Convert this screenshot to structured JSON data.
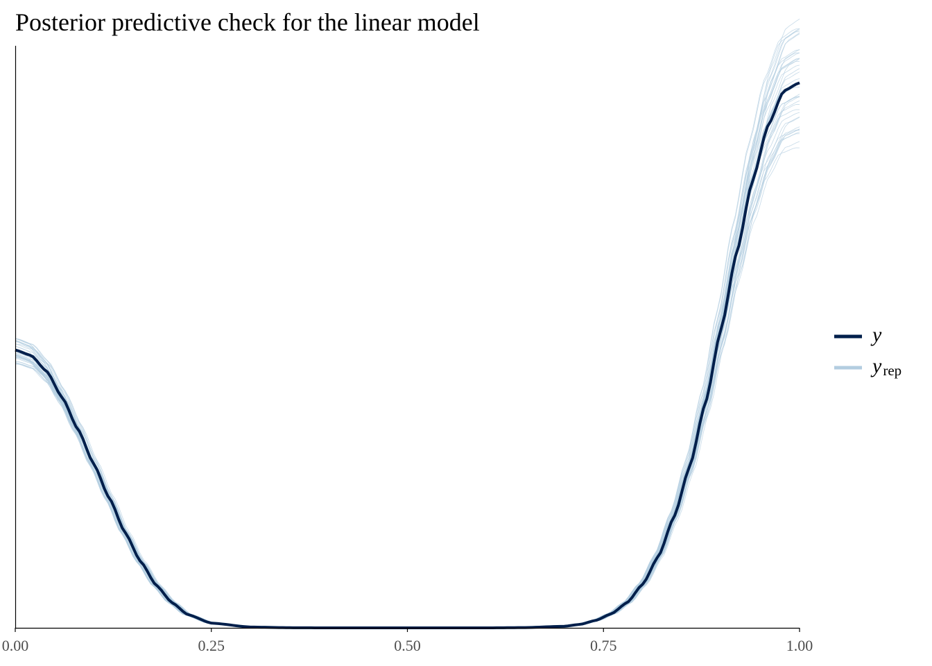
{
  "chart_data": {
    "type": "line",
    "title": "Posterior predictive check for the linear model",
    "xlabel": "",
    "ylabel": "",
    "xlim": [
      0,
      1
    ],
    "ylim": [
      0,
      2.2
    ],
    "x_ticks": [
      "0.00",
      "0.25",
      "0.50",
      "0.75",
      "1.00"
    ],
    "y_ticks_shown": false,
    "grid": false,
    "legend_position": "right",
    "colors": {
      "y": "#011f4b",
      "yrep": "#b3cde0"
    },
    "legend": [
      {
        "key": "y",
        "label": "y",
        "subscript": ""
      },
      {
        "key": "yrep",
        "label": "y",
        "subscript": "rep"
      }
    ],
    "series": [
      {
        "name": "y",
        "role": "observed",
        "x": [
          0.0,
          0.02,
          0.04,
          0.06,
          0.08,
          0.1,
          0.12,
          0.14,
          0.16,
          0.18,
          0.2,
          0.22,
          0.25,
          0.3,
          0.35,
          0.4,
          0.5,
          0.6,
          0.65,
          0.7,
          0.72,
          0.74,
          0.76,
          0.78,
          0.8,
          0.82,
          0.84,
          0.86,
          0.88,
          0.9,
          0.92,
          0.94,
          0.96,
          0.98,
          1.0
        ],
        "y": [
          1.05,
          1.03,
          0.97,
          0.87,
          0.75,
          0.62,
          0.49,
          0.36,
          0.25,
          0.16,
          0.095,
          0.05,
          0.018,
          0.003,
          0.0005,
          0.0,
          0.0,
          0.0,
          0.001,
          0.006,
          0.013,
          0.028,
          0.053,
          0.095,
          0.165,
          0.27,
          0.42,
          0.61,
          0.85,
          1.13,
          1.42,
          1.69,
          1.9,
          2.03,
          2.06
        ]
      },
      {
        "name": "y_rep",
        "role": "replicated draws",
        "draws": 40,
        "spread_at_x0": 0.05,
        "spread_at_x1": 0.12
      }
    ]
  }
}
